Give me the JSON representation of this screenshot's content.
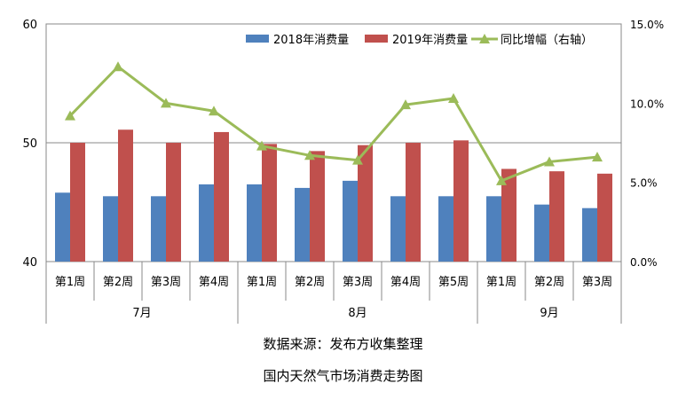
{
  "chart_data": {
    "type": "bar",
    "categories": [
      "第1周",
      "第2周",
      "第3周",
      "第4周",
      "第1周",
      "第2周",
      "第3周",
      "第4周",
      "第5周",
      "第1周",
      "第2周",
      "第3周"
    ],
    "groups": [
      {
        "label": "7月",
        "count": 4
      },
      {
        "label": "8月",
        "count": 5
      },
      {
        "label": "9月",
        "count": 3
      }
    ],
    "series": [
      {
        "name": "2018年消费量",
        "kind": "bar",
        "axis": "left",
        "color": "#4F81BD",
        "values": [
          45.8,
          45.5,
          45.5,
          46.5,
          46.5,
          46.2,
          46.8,
          45.5,
          45.5,
          45.5,
          44.8,
          44.5
        ]
      },
      {
        "name": "2019年消费量",
        "kind": "bar",
        "axis": "left",
        "color": "#C0504D",
        "values": [
          50.0,
          51.1,
          50.0,
          50.9,
          49.9,
          49.3,
          49.8,
          50.0,
          50.2,
          47.8,
          47.6,
          47.4
        ]
      },
      {
        "name": "同比增幅（右轴）",
        "kind": "line",
        "axis": "right",
        "color": "#9BBB59",
        "values": [
          9.2,
          12.3,
          10.0,
          9.5,
          7.3,
          6.7,
          6.4,
          9.9,
          10.3,
          5.1,
          6.3,
          6.6
        ]
      }
    ],
    "y_left": {
      "min": 40,
      "max": 60,
      "ticks": [
        40,
        50,
        60
      ]
    },
    "y_right": {
      "min": 0,
      "max": 15,
      "ticks": [
        "0.0%",
        "5.0%",
        "10.0%",
        "15.0%"
      ]
    },
    "legend_position": "top-right",
    "gridlines": true
  },
  "source_text": "数据来源：发布方收集整理",
  "chart_title": "国内天然气市场消费走势图"
}
